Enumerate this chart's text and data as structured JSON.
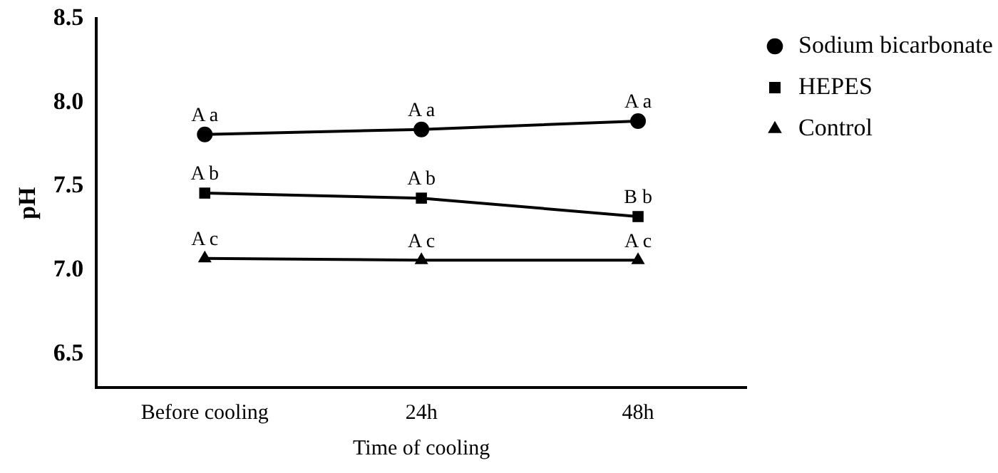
{
  "chart_data": {
    "type": "line",
    "xlabel": "Time of cooling",
    "ylabel": "pH",
    "categories": [
      "Before cooling",
      "24h",
      "48h"
    ],
    "series": [
      {
        "name": "Sodium bicarbonate",
        "color": "#000000",
        "marker": "circle",
        "values": [
          7.81,
          7.84,
          7.89
        ]
      },
      {
        "name": "HEPES",
        "color": "#000000",
        "marker": "square",
        "values": [
          7.46,
          7.43,
          7.32
        ]
      },
      {
        "name": "Control",
        "color": "#000000",
        "marker": "triangle",
        "values": [
          7.07,
          7.06,
          7.06
        ]
      }
    ],
    "ylim": [
      6.3,
      8.5
    ],
    "yticks": [
      {
        "value": 6.5,
        "label": "6.5"
      },
      {
        "value": 7,
        "label": "7.0"
      },
      {
        "value": 7.5,
        "label": "7.5"
      },
      {
        "value": 8,
        "label": "8.0"
      },
      {
        "value": 8.5,
        "label": "8.5"
      }
    ],
    "grid": false,
    "legend": "top right",
    "line_style": "solid",
    "annotations": [
      {
        "text": "A a",
        "x": "Before cooling",
        "y": 7.81
      },
      {
        "text": "A a",
        "x": "24h",
        "y": 7.84
      },
      {
        "text": "A a",
        "x": "48h",
        "y": 7.89
      },
      {
        "text": "A b",
        "x": "Before cooling",
        "y": 7.46
      },
      {
        "text": "A b",
        "x": "24h",
        "y": 7.43
      },
      {
        "text": "B b",
        "x": "48h",
        "y": 7.32
      },
      {
        "text": "A c",
        "x": "Before cooling",
        "y": 7.07
      },
      {
        "text": "A c",
        "x": "24h",
        "y": 7.06
      },
      {
        "text": "A c",
        "x": "48h",
        "y": 7.06
      }
    ]
  }
}
